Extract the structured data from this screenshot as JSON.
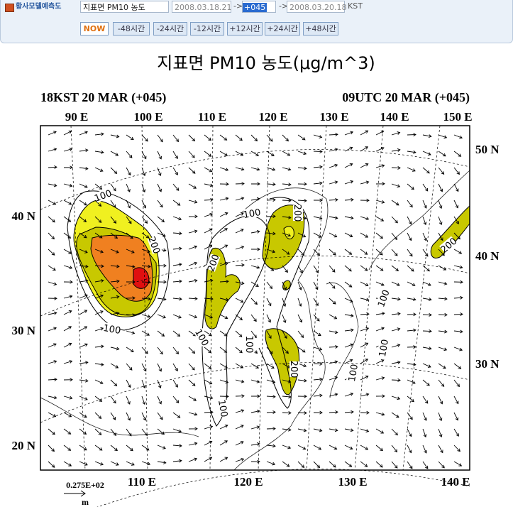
{
  "toolbar": {
    "label": "황사모델예측도",
    "variable": "지표면 PM10 농도",
    "start": "2008.03.18.21",
    "arrow1": "->",
    "offset": "+045",
    "arrow2": "->",
    "valid": "2008.03.20.18",
    "timezone": "KST",
    "buttons": [
      "NOW",
      "-48시간",
      "-24시간",
      "-12시간",
      "+12시간",
      "+24시간",
      "+48시간"
    ]
  },
  "map": {
    "title": "지표면  PM10  농도(μg/m^3)",
    "left_time": "18KST 20 MAR (+045)",
    "right_time": "09UTC 20 MAR (+045)",
    "top_lon": [
      "90 E",
      "100 E",
      "110 E",
      "120 E",
      "130 E",
      "140 E",
      "150 E"
    ],
    "bottom_lon": [
      "110 E",
      "120 E",
      "130 E",
      "140 E"
    ],
    "left_lat": [
      "40 N",
      "30 N",
      "20 N"
    ],
    "right_lat": [
      "50 N",
      "40 N",
      "30 N"
    ],
    "contour_labels": [
      "100",
      "100",
      "200",
      "200",
      "200",
      "100",
      "100",
      "100",
      "200",
      "100",
      "100",
      "100",
      "100",
      "200"
    ],
    "scale_label": "0.275E+02",
    "scale_unit": "m"
  }
}
